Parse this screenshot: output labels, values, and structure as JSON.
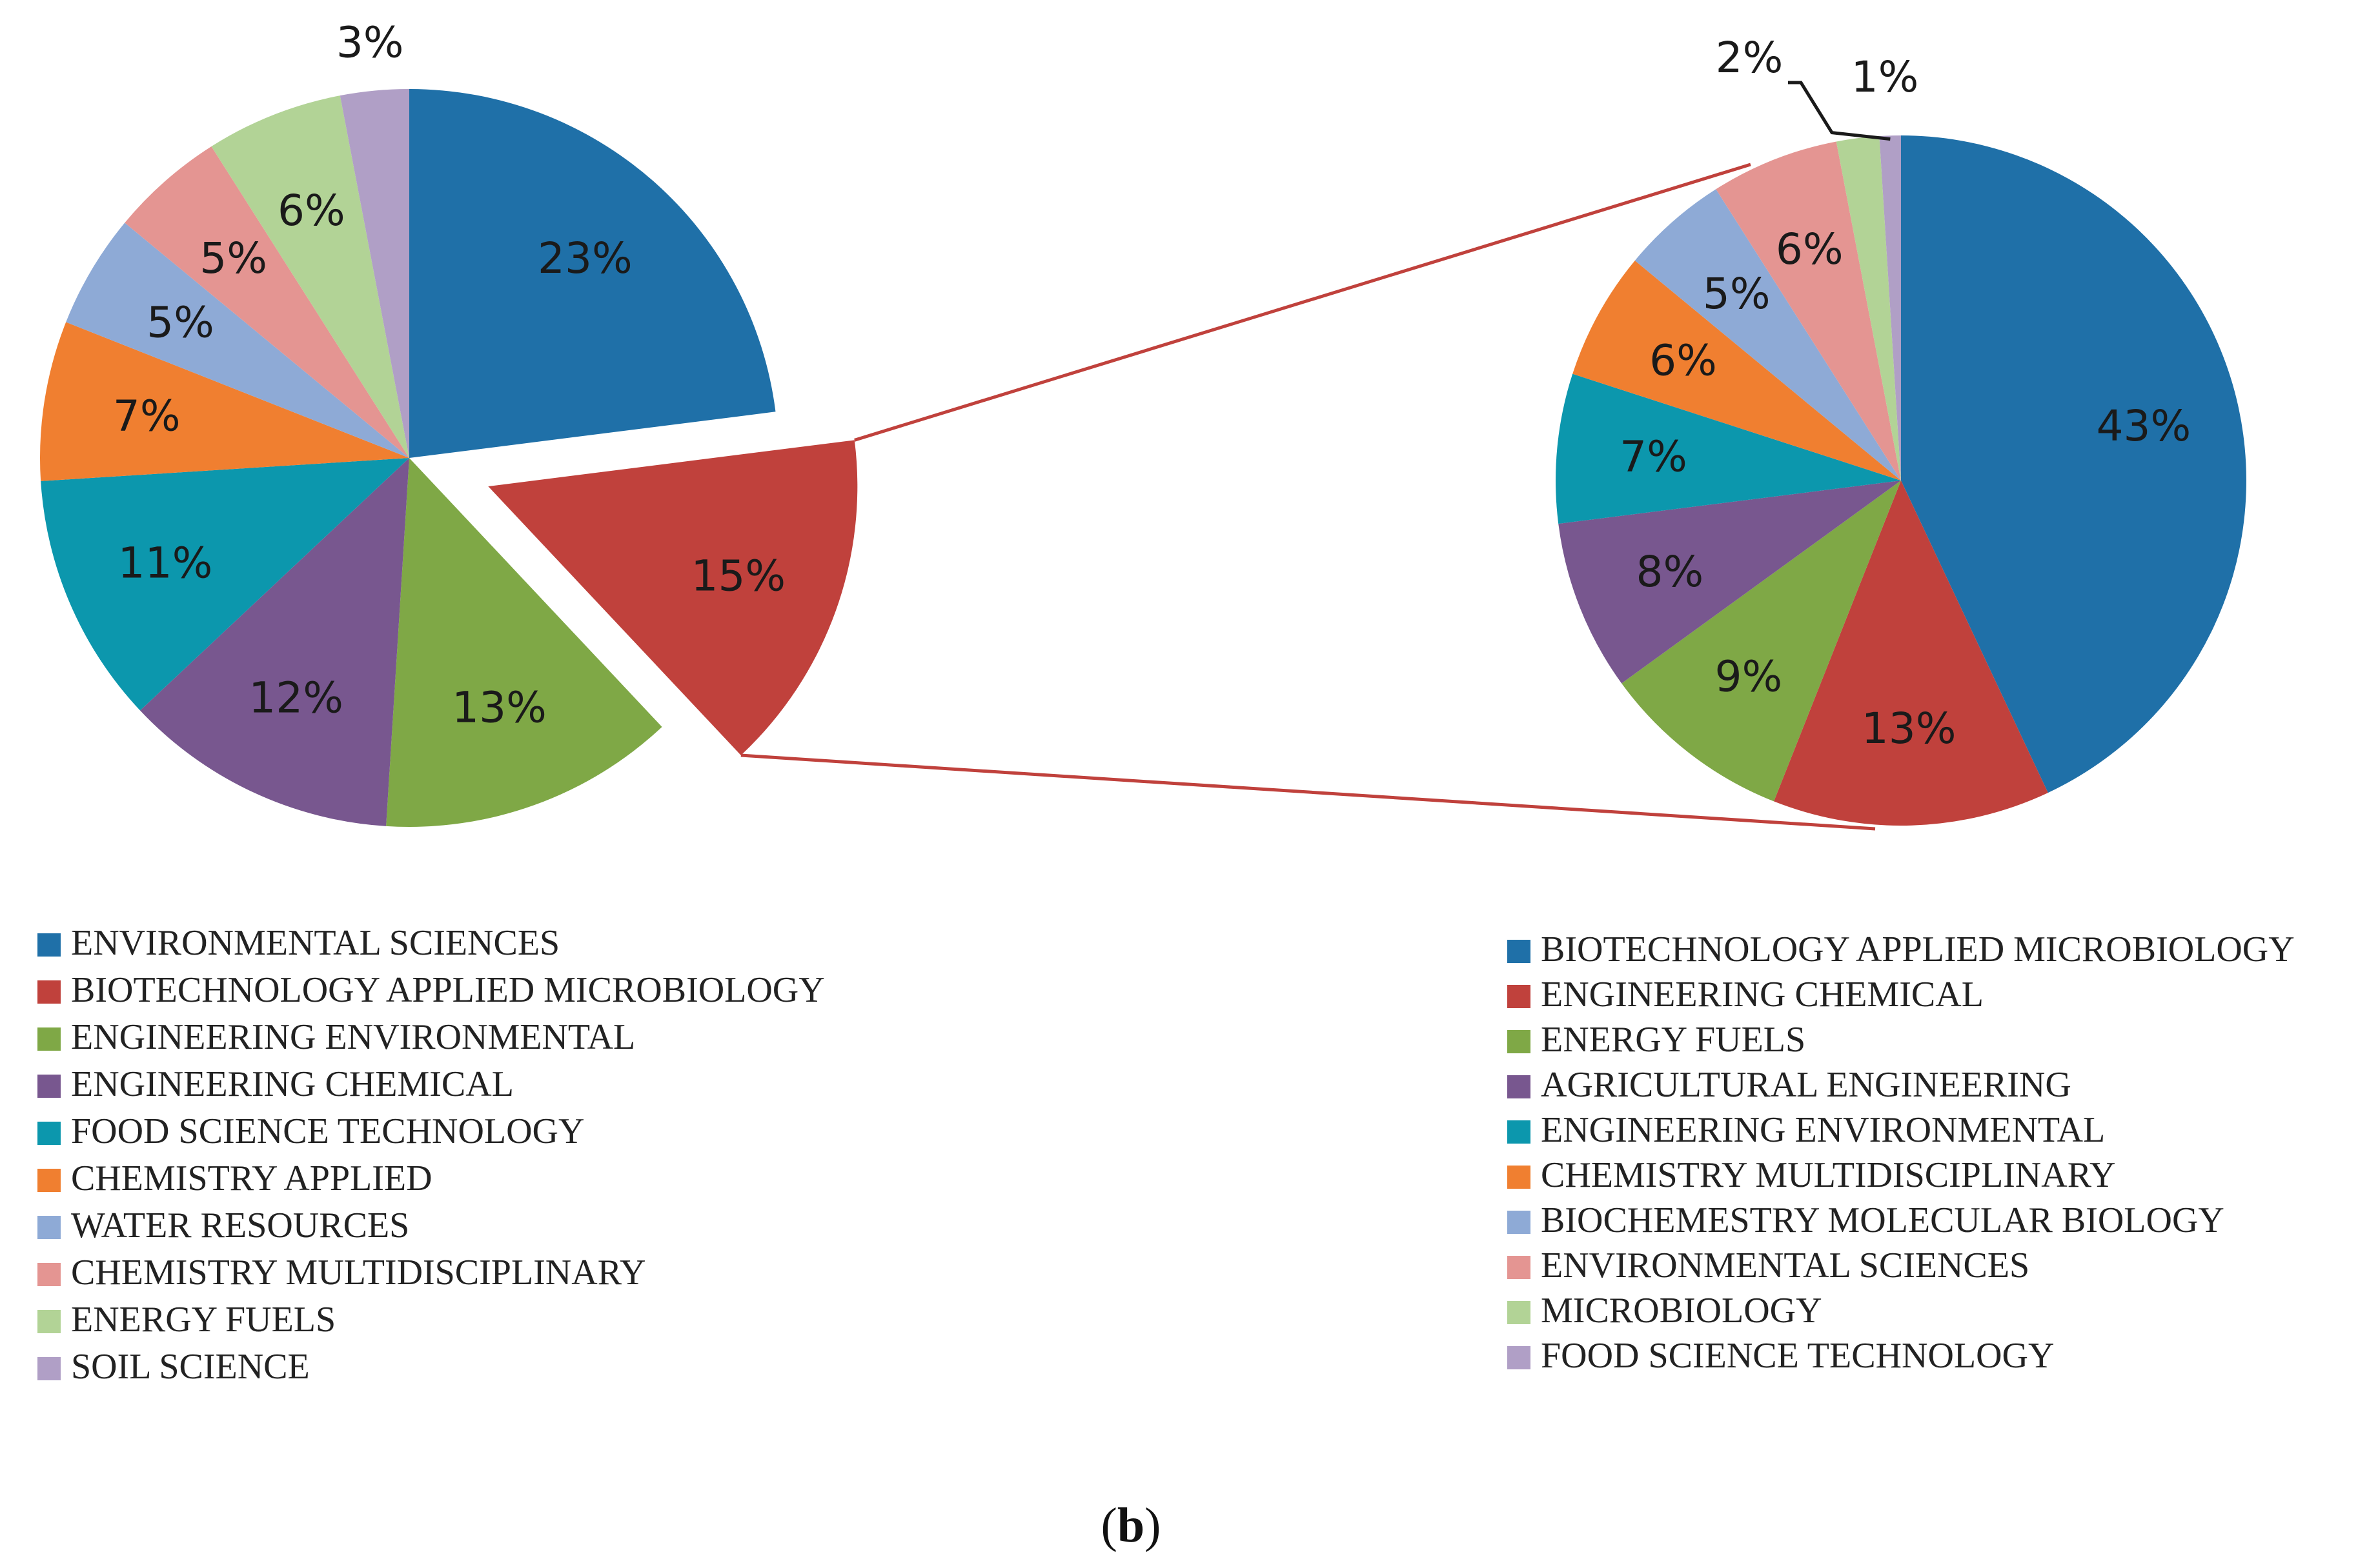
{
  "chart_data": [
    {
      "type": "pie",
      "name": "left",
      "exploded": "BIOTECHNOLOGY APPLIED MICROBIOLOGY",
      "slices": [
        {
          "label": "ENVIRONMENTAL SCIENCES",
          "value": 23,
          "text": "23%",
          "color": "#1f70a8"
        },
        {
          "label": "BIOTECHNOLOGY APPLIED MICROBIOLOGY",
          "value": 15,
          "text": "15%",
          "color": "#c0413c"
        },
        {
          "label": "ENGINEERING ENVIRONMENTAL",
          "value": 13,
          "text": "13%",
          "color": "#7fa846"
        },
        {
          "label": "ENGINEERING CHEMICAL",
          "value": 12,
          "text": "12%",
          "color": "#78578f"
        },
        {
          "label": "FOOD SCIENCE TECHNOLOGY",
          "value": 11,
          "text": "11%",
          "color": "#0c97ad"
        },
        {
          "label": "CHEMISTRY APPLIED",
          "value": 7,
          "text": "7%",
          "color": "#f07f30"
        },
        {
          "label": "WATER RESOURCES",
          "value": 5,
          "text": "5%",
          "color": "#8eaad6"
        },
        {
          "label": "CHEMISTRY MULTIDISCIPLINARY",
          "value": 5,
          "text": "5%",
          "color": "#e49592"
        },
        {
          "label": "ENERGY FUELS",
          "value": 6,
          "text": "6%",
          "color": "#b2d396"
        },
        {
          "label": "SOIL SCIENCE",
          "value": 3,
          "text": "3%",
          "color": "#b09fc6"
        }
      ]
    },
    {
      "type": "pie",
      "name": "right",
      "slices": [
        {
          "label": "BIOTECHNOLOGY APPLIED MICROBIOLOGY",
          "value": 43,
          "text": "43%",
          "color": "#1f70a8"
        },
        {
          "label": "ENGINEERING CHEMICAL",
          "value": 13,
          "text": "13%",
          "color": "#c0413c"
        },
        {
          "label": "ENERGY FUELS",
          "value": 9,
          "text": "9%",
          "color": "#7fa846"
        },
        {
          "label": "AGRICULTURAL ENGINEERING",
          "value": 8,
          "text": "8%",
          "color": "#78578f"
        },
        {
          "label": "ENGINEERING ENVIRONMENTAL",
          "value": 7,
          "text": "7%",
          "color": "#0c97ad"
        },
        {
          "label": "CHEMISTRY MULTIDISCIPLINARY",
          "value": 6,
          "text": "6%",
          "color": "#f07f30"
        },
        {
          "label": "BIOCHEMESTRY MOLECULAR BIOLOGY",
          "value": 5,
          "text": "5%",
          "color": "#8eaad6"
        },
        {
          "label": "ENVIRONMENTAL SCIENCES",
          "value": 6,
          "text": "6%",
          "color": "#e49592"
        },
        {
          "label": "MICROBIOLOGY",
          "value": 2,
          "text": "2%",
          "color": "#b2d396"
        },
        {
          "label": "FOOD SCIENCE TECHNOLOGY",
          "value": 1,
          "text": "1%",
          "color": "#b09fc6"
        }
      ]
    }
  ],
  "connector_color": "#c0413c",
  "caption": {
    "open": "(",
    "letter": "b",
    "close": ")"
  }
}
